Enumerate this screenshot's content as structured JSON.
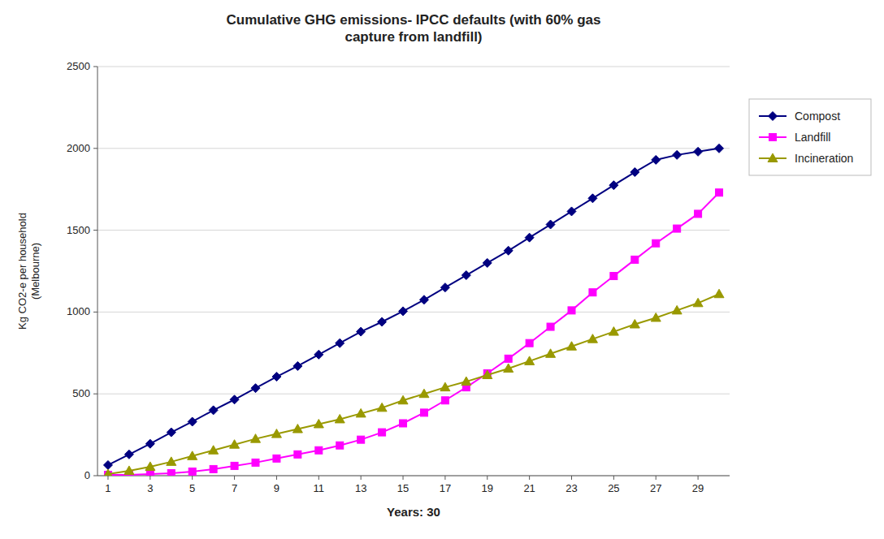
{
  "chart_data": {
    "type": "line",
    "title": "Cumulative GHG emissions- IPCC defaults (with 60% gas\ncapture from landfill)",
    "x_label": "Years: 30",
    "y_label": "Kg CO2-e per household\n(Melbourne)",
    "x": [
      1,
      2,
      3,
      4,
      5,
      6,
      7,
      8,
      9,
      10,
      11,
      12,
      13,
      14,
      15,
      16,
      17,
      18,
      19,
      20,
      21,
      22,
      23,
      24,
      25,
      26,
      27,
      28,
      29,
      30
    ],
    "series": [
      {
        "name": "Compost",
        "color": "#000080",
        "marker": "diamond",
        "values": [
          65,
          130,
          195,
          265,
          330,
          400,
          465,
          535,
          605,
          670,
          740,
          810,
          880,
          940,
          1005,
          1075,
          1150,
          1225,
          1300,
          1375,
          1455,
          1535,
          1615,
          1695,
          1775,
          1855,
          1930,
          1960,
          1980,
          2000
        ]
      },
      {
        "name": "Landfill",
        "color": "#FF00FF",
        "marker": "square",
        "values": [
          5,
          5,
          10,
          15,
          25,
          40,
          60,
          80,
          105,
          130,
          155,
          185,
          220,
          265,
          320,
          385,
          460,
          540,
          625,
          715,
          810,
          910,
          1010,
          1120,
          1220,
          1320,
          1420,
          1510,
          1600,
          1730
        ]
      },
      {
        "name": "Incineration",
        "color": "#999900",
        "marker": "triangle",
        "values": [
          10,
          30,
          55,
          85,
          120,
          155,
          190,
          225,
          255,
          285,
          315,
          345,
          380,
          415,
          460,
          500,
          540,
          575,
          615,
          655,
          700,
          745,
          790,
          835,
          880,
          925,
          965,
          1010,
          1055,
          1110
        ]
      }
    ],
    "xlim": [
      0.5,
      30.5
    ],
    "xticks": [
      1,
      3,
      5,
      7,
      9,
      11,
      13,
      15,
      17,
      19,
      21,
      23,
      25,
      27,
      29
    ],
    "ylim": [
      0,
      2500
    ],
    "yticks": [
      0,
      500,
      1000,
      1500,
      2000,
      2500
    ],
    "grid": true,
    "legend": "right"
  }
}
